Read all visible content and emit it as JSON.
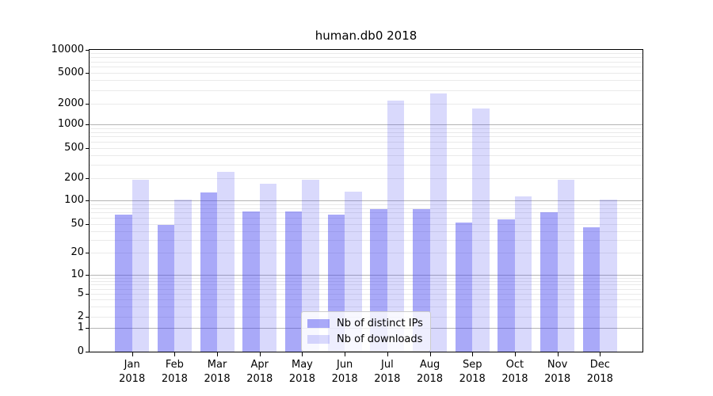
{
  "chart_data": {
    "type": "bar",
    "title": "human.db0 2018",
    "xlabel": "",
    "ylabel": "",
    "yscale": "symlog",
    "ylim": [
      0,
      10000
    ],
    "grid": true,
    "legend_position": "lower center",
    "x_tick_year": "2018",
    "categories": [
      "Jan",
      "Feb",
      "Mar",
      "Apr",
      "May",
      "Jun",
      "Jul",
      "Aug",
      "Sep",
      "Oct",
      "Nov",
      "Dec"
    ],
    "yticks": [
      0,
      1,
      2,
      5,
      10,
      20,
      50,
      100,
      200,
      500,
      1000,
      2000,
      5000,
      10000
    ],
    "series": [
      {
        "name": "Nb of distinct IPs",
        "color": "rgba(64,64,240,0.45)",
        "values": [
          66,
          49,
          128,
          72,
          73,
          66,
          77,
          77,
          52,
          58,
          71,
          45
        ]
      },
      {
        "name": "Nb of downloads",
        "color": "rgba(64,64,240,0.20)",
        "values": [
          190,
          103,
          240,
          170,
          190,
          132,
          2200,
          2700,
          1700,
          113,
          190,
          102
        ]
      }
    ]
  }
}
